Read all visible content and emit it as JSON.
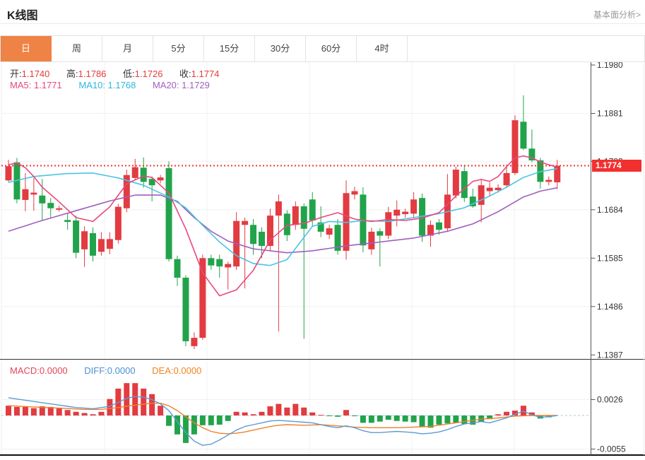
{
  "header": {
    "title": "K线图",
    "link": "基本面分析>"
  },
  "tabs": {
    "items": [
      {
        "label": "日",
        "active": true
      },
      {
        "label": "周",
        "active": false
      },
      {
        "label": "月",
        "active": false
      },
      {
        "label": "5分",
        "active": false
      },
      {
        "label": "15分",
        "active": false
      },
      {
        "label": "30分",
        "active": false
      },
      {
        "label": "60分",
        "active": false
      },
      {
        "label": "4时",
        "active": false
      }
    ],
    "active_color": "#ef8346"
  },
  "legend": {
    "ohlc": [
      {
        "label": "开:",
        "value": "1.1740"
      },
      {
        "label": "高:",
        "value": "1.1786"
      },
      {
        "label": "低:",
        "value": "1.1726"
      },
      {
        "label": "收:",
        "value": "1.1774"
      }
    ],
    "ohlc_value_color": "#e63b3b",
    "ma": [
      {
        "label": "MA5: ",
        "value": "1.1771",
        "color": "#e8487e"
      },
      {
        "label": "MA10: ",
        "value": "1.1768",
        "color": "#2fb7dc"
      },
      {
        "label": "MA20: ",
        "value": "1.1729",
        "color": "#a05fc0"
      }
    ],
    "macd": [
      {
        "label": "MACD:",
        "value": "0.0000",
        "color": "#e14658"
      },
      {
        "label": "DIFF:",
        "value": "0.0000",
        "color": "#4a90d2"
      },
      {
        "label": "DEA:",
        "value": "0.0000",
        "color": "#f5821f"
      }
    ]
  },
  "price_tag": {
    "text": "1.1774",
    "bg": "#f2302f"
  },
  "chart_data": {
    "type": "candlestick_with_macd",
    "title": "K线图 (日)",
    "legend_position": "top-left",
    "grid": true,
    "up_color": "#e23b41",
    "down_color": "#22a34b",
    "ma_colors": {
      "ma5": "#e8487e",
      "ma10": "#4cc4e4",
      "ma20": "#a05fc0"
    },
    "diff_color": "#5b9bd5",
    "dea_color": "#f0802a",
    "last_price": 1.1774,
    "last_price_line_color": "#f23636",
    "price_axis_ticks": [
      1.198,
      1.1881,
      1.1783,
      1.1684,
      1.1585,
      1.1486,
      1.1387
    ],
    "macd_axis_ticks": [
      0.0026,
      -0.0055
    ],
    "price_ylim": [
      1.136,
      1.2
    ],
    "macd_ylim": [
      -0.0068,
      0.0053
    ],
    "candles": [
      [
        1.1744,
        1.1786,
        1.1741,
        1.1773
      ],
      [
        1.1781,
        1.179,
        1.1697,
        1.1705
      ],
      [
        1.1704,
        1.1759,
        1.1681,
        1.1726
      ],
      [
        1.1715,
        1.1749,
        1.1682,
        1.1719
      ],
      [
        1.1713,
        1.1747,
        1.1661,
        1.1697
      ],
      [
        1.1698,
        1.1708,
        1.1668,
        1.1687
      ],
      [
        1.1684,
        1.1692,
        1.168,
        1.1687
      ],
      [
        1.1663,
        1.1676,
        1.1643,
        1.1659
      ],
      [
        1.1662,
        1.1672,
        1.1585,
        1.1596
      ],
      [
        1.1603,
        1.165,
        1.1567,
        1.164
      ],
      [
        1.1636,
        1.1648,
        1.1578,
        1.159
      ],
      [
        1.1598,
        1.1638,
        1.159,
        1.1624
      ],
      [
        1.1604,
        1.1638,
        1.1593,
        1.1624
      ],
      [
        1.1622,
        1.1696,
        1.1615,
        1.169
      ],
      [
        1.1687,
        1.1766,
        1.1679,
        1.1755
      ],
      [
        1.1749,
        1.1788,
        1.1745,
        1.1771
      ],
      [
        1.177,
        1.1791,
        1.1729,
        1.1741
      ],
      [
        1.1747,
        1.1752,
        1.1701,
        1.1734
      ],
      [
        1.1744,
        1.1755,
        1.1738,
        1.175
      ],
      [
        1.1769,
        1.1783,
        1.1578,
        1.1583
      ],
      [
        1.1583,
        1.159,
        1.1528,
        1.1545
      ],
      [
        1.1545,
        1.155,
        1.1405,
        1.1415
      ],
      [
        1.1405,
        1.1433,
        1.1399,
        1.1422
      ],
      [
        1.1422,
        1.1592,
        1.1418,
        1.1585
      ],
      [
        1.1585,
        1.1592,
        1.1561,
        1.157
      ],
      [
        1.1583,
        1.1592,
        1.1545,
        1.1568
      ],
      [
        1.1566,
        1.1578,
        1.1521,
        1.1573
      ],
      [
        1.1568,
        1.1679,
        1.1561,
        1.1661
      ],
      [
        1.1653,
        1.1668,
        1.1523,
        1.1661
      ],
      [
        1.1653,
        1.1665,
        1.1592,
        1.1614
      ],
      [
        1.1639,
        1.1648,
        1.1585,
        1.161
      ],
      [
        1.161,
        1.1686,
        1.16,
        1.1672
      ],
      [
        1.1672,
        1.1715,
        1.1435,
        1.1701
      ],
      [
        1.1676,
        1.1683,
        1.162,
        1.1632
      ],
      [
        1.1653,
        1.1701,
        1.1643,
        1.1691
      ],
      [
        1.1691,
        1.1697,
        1.142,
        1.1645
      ],
      [
        1.1705,
        1.172,
        1.165,
        1.1662
      ],
      [
        1.1658,
        1.1691,
        1.1628,
        1.1639
      ],
      [
        1.1633,
        1.1653,
        1.1624,
        1.1646
      ],
      [
        1.1653,
        1.1665,
        1.1592,
        1.16
      ],
      [
        1.16,
        1.1744,
        1.1582,
        1.1718
      ],
      [
        1.1715,
        1.1731,
        1.1705,
        1.1722
      ],
      [
        1.1715,
        1.173,
        1.1597,
        1.1611
      ],
      [
        1.1603,
        1.1647,
        1.1592,
        1.1639
      ],
      [
        1.164,
        1.1646,
        1.1568,
        1.1631
      ],
      [
        1.1631,
        1.169,
        1.1624,
        1.1679
      ],
      [
        1.1672,
        1.1703,
        1.165,
        1.1684
      ],
      [
        1.1675,
        1.1686,
        1.1668,
        1.168
      ],
      [
        1.1676,
        1.172,
        1.1668,
        1.1705
      ],
      [
        1.1708,
        1.1717,
        1.1618,
        1.1631
      ],
      [
        1.1631,
        1.1662,
        1.1608,
        1.1653
      ],
      [
        1.1658,
        1.1665,
        1.1633,
        1.1643
      ],
      [
        1.1646,
        1.1757,
        1.164,
        1.1715
      ],
      [
        1.1713,
        1.1772,
        1.1707,
        1.1766
      ],
      [
        1.1763,
        1.1776,
        1.17,
        1.1708
      ],
      [
        1.1711,
        1.1727,
        1.1688,
        1.1691
      ],
      [
        1.1694,
        1.1747,
        1.1658,
        1.1734
      ],
      [
        1.1722,
        1.174,
        1.1712,
        1.1729
      ],
      [
        1.1724,
        1.1736,
        1.1719,
        1.1729
      ],
      [
        1.1734,
        1.1777,
        1.173,
        1.1759
      ],
      [
        1.1759,
        1.1877,
        1.1755,
        1.1867
      ],
      [
        1.1864,
        1.1918,
        1.1806,
        1.1809
      ],
      [
        1.1809,
        1.1848,
        1.1781,
        1.1785
      ],
      [
        1.1785,
        1.179,
        1.1727,
        1.1741
      ],
      [
        1.1741,
        1.1752,
        1.1734,
        1.1745
      ],
      [
        1.174,
        1.1786,
        1.1726,
        1.1774
      ]
    ],
    "ma5_points": [
      [
        0,
        1.1776
      ],
      [
        1,
        1.178
      ],
      [
        2,
        1.177
      ],
      [
        3,
        1.1752
      ],
      [
        4,
        1.173
      ],
      [
        6,
        1.17
      ],
      [
        8,
        1.1668
      ],
      [
        10,
        1.166
      ],
      [
        12,
        1.169
      ],
      [
        14,
        1.1737
      ],
      [
        16,
        1.1753
      ],
      [
        17,
        1.175
      ],
      [
        19,
        1.1718
      ],
      [
        21,
        1.1645
      ],
      [
        23,
        1.1555
      ],
      [
        25,
        1.1508
      ],
      [
        27,
        1.152
      ],
      [
        29,
        1.156
      ],
      [
        31,
        1.1622
      ],
      [
        33,
        1.1652
      ],
      [
        35,
        1.1656
      ],
      [
        37,
        1.1668
      ],
      [
        39,
        1.1678
      ],
      [
        41,
        1.1665
      ],
      [
        43,
        1.166
      ],
      [
        45,
        1.1664
      ],
      [
        47,
        1.1662
      ],
      [
        49,
        1.1667
      ],
      [
        51,
        1.1678
      ],
      [
        53,
        1.1712
      ],
      [
        55,
        1.1742
      ],
      [
        56,
        1.1746
      ],
      [
        57,
        1.1742
      ],
      [
        58,
        1.1752
      ],
      [
        59,
        1.1772
      ],
      [
        60,
        1.179
      ],
      [
        61,
        1.1794
      ],
      [
        62,
        1.179
      ],
      [
        63,
        1.1782
      ],
      [
        64,
        1.1776
      ],
      [
        65,
        1.1771
      ]
    ],
    "ma10_points": [
      [
        0,
        1.174
      ],
      [
        3,
        1.1752
      ],
      [
        7,
        1.1758
      ],
      [
        10,
        1.1759
      ],
      [
        13,
        1.1749
      ],
      [
        16,
        1.1734
      ],
      [
        19,
        1.171
      ],
      [
        21,
        1.1688
      ],
      [
        23,
        1.1652
      ],
      [
        25,
        1.1618
      ],
      [
        27,
        1.159
      ],
      [
        29,
        1.1574
      ],
      [
        31,
        1.157
      ],
      [
        33,
        1.1582
      ],
      [
        34,
        1.1605
      ],
      [
        36,
        1.165
      ],
      [
        38,
        1.166
      ],
      [
        40,
        1.1658
      ],
      [
        42,
        1.1662
      ],
      [
        45,
        1.166
      ],
      [
        48,
        1.1668
      ],
      [
        51,
        1.1676
      ],
      [
        54,
        1.1688
      ],
      [
        57,
        1.1712
      ],
      [
        59,
        1.173
      ],
      [
        61,
        1.175
      ],
      [
        63,
        1.1762
      ],
      [
        65,
        1.1768
      ]
    ],
    "ma20_points": [
      [
        0,
        1.164
      ],
      [
        4,
        1.1662
      ],
      [
        8,
        1.1682
      ],
      [
        12,
        1.1702
      ],
      [
        15,
        1.1714
      ],
      [
        18,
        1.1714
      ],
      [
        20,
        1.1701
      ],
      [
        22,
        1.1668
      ],
      [
        24,
        1.164
      ],
      [
        26,
        1.162
      ],
      [
        29,
        1.1604
      ],
      [
        33,
        1.1596
      ],
      [
        36,
        1.16
      ],
      [
        40,
        1.161
      ],
      [
        44,
        1.1618
      ],
      [
        48,
        1.1626
      ],
      [
        52,
        1.164
      ],
      [
        55,
        1.1655
      ],
      [
        58,
        1.168
      ],
      [
        61,
        1.171
      ],
      [
        63,
        1.1722
      ],
      [
        65,
        1.1729
      ]
    ],
    "macd_hist": [
      0.0016,
      0.0014,
      0.0014,
      0.0012,
      0.0015,
      0.0014,
      0.0012,
      0.0009,
      0.0006,
      0.0004,
      0.0002,
      0.0006,
      0.0027,
      0.0044,
      0.0053,
      0.0053,
      0.0044,
      0.0035,
      0.0016,
      -0.0017,
      -0.0031,
      -0.0045,
      -0.0031,
      -0.0016,
      -0.0016,
      -0.0015,
      -0.0009,
      0.0006,
      0.0005,
      0.0002,
      0.0006,
      0.0015,
      0.0019,
      0.0013,
      0.0019,
      0.0013,
      0.0005,
      0.0001,
      -0.0001,
      -0.0002,
      0.0009,
      -0.0001,
      -0.0012,
      -0.0012,
      -0.001,
      -0.0007,
      -0.0009,
      -0.001,
      -0.0011,
      -0.0019,
      -0.002,
      -0.0015,
      -0.0013,
      -0.0012,
      -0.0014,
      -0.0015,
      -0.001,
      -0.0006,
      0.0002,
      0.0006,
      0.0008,
      0.0016,
      0.0005,
      -0.0005,
      -0.0003,
      0.0
    ],
    "diff_points": [
      [
        0,
        0.0029
      ],
      [
        2,
        0.0025
      ],
      [
        4,
        0.0021
      ],
      [
        6,
        0.0017
      ],
      [
        8,
        0.0013
      ],
      [
        10,
        0.0011
      ],
      [
        12,
        0.0015
      ],
      [
        14,
        0.0028
      ],
      [
        15,
        0.0031
      ],
      [
        16,
        0.003
      ],
      [
        17,
        0.0026
      ],
      [
        18,
        0.0019
      ],
      [
        19,
        0.0008
      ],
      [
        20,
        -0.001
      ],
      [
        21,
        -0.0028
      ],
      [
        22,
        -0.0042
      ],
      [
        23,
        -0.0049
      ],
      [
        24,
        -0.0047
      ],
      [
        25,
        -0.004
      ],
      [
        26,
        -0.0032
      ],
      [
        27,
        -0.0024
      ],
      [
        28,
        -0.0018
      ],
      [
        29,
        -0.0015
      ],
      [
        30,
        -0.0012
      ],
      [
        31,
        -0.0009
      ],
      [
        32,
        -0.0008
      ],
      [
        33,
        -0.0009
      ],
      [
        34,
        -0.001
      ],
      [
        35,
        -0.0011
      ],
      [
        36,
        -0.0012
      ],
      [
        37,
        -0.0015
      ],
      [
        38,
        -0.0018
      ],
      [
        39,
        -0.002
      ],
      [
        40,
        -0.0017
      ],
      [
        41,
        -0.002
      ],
      [
        42,
        -0.0025
      ],
      [
        43,
        -0.0028
      ],
      [
        44,
        -0.0028
      ],
      [
        45,
        -0.0027
      ],
      [
        46,
        -0.0026
      ],
      [
        47,
        -0.0027
      ],
      [
        48,
        -0.0028
      ],
      [
        49,
        -0.003
      ],
      [
        50,
        -0.0029
      ],
      [
        51,
        -0.0027
      ],
      [
        52,
        -0.0023
      ],
      [
        53,
        -0.0018
      ],
      [
        54,
        -0.0014
      ],
      [
        55,
        -0.0012
      ],
      [
        56,
        -0.001
      ],
      [
        57,
        -0.0012
      ],
      [
        58,
        -0.0008
      ],
      [
        59,
        -0.0004
      ],
      [
        60,
        0.0002
      ],
      [
        61,
        0.0007
      ],
      [
        62,
        0.0001
      ],
      [
        63,
        -0.0003
      ],
      [
        64,
        -0.0002
      ],
      [
        65,
        0.0
      ]
    ],
    "dea_points": [
      [
        0,
        0.0016
      ],
      [
        3,
        0.0014
      ],
      [
        6,
        0.0012
      ],
      [
        9,
        0.001
      ],
      [
        11,
        0.001
      ],
      [
        13,
        0.0013
      ],
      [
        15,
        0.0017
      ],
      [
        17,
        0.002
      ],
      [
        18,
        0.002
      ],
      [
        19,
        0.0016
      ],
      [
        20,
        0.0008
      ],
      [
        21,
        -0.0002
      ],
      [
        22,
        -0.0012
      ],
      [
        23,
        -0.002
      ],
      [
        24,
        -0.0026
      ],
      [
        25,
        -0.0029
      ],
      [
        26,
        -0.003
      ],
      [
        27,
        -0.0029
      ],
      [
        28,
        -0.0027
      ],
      [
        29,
        -0.0024
      ],
      [
        30,
        -0.0021
      ],
      [
        31,
        -0.0018
      ],
      [
        32,
        -0.0016
      ],
      [
        33,
        -0.0015
      ],
      [
        35,
        -0.0016
      ],
      [
        37,
        -0.0015
      ],
      [
        39,
        -0.0017
      ],
      [
        41,
        -0.0019
      ],
      [
        43,
        -0.002
      ],
      [
        46,
        -0.002
      ],
      [
        48,
        -0.0019
      ],
      [
        50,
        -0.0018
      ],
      [
        52,
        -0.0014
      ],
      [
        54,
        -0.001
      ],
      [
        56,
        -0.0006
      ],
      [
        58,
        -0.0004
      ],
      [
        60,
        -0.0001
      ],
      [
        62,
        0.0
      ],
      [
        64,
        0.0
      ],
      [
        65,
        0.0
      ]
    ]
  }
}
